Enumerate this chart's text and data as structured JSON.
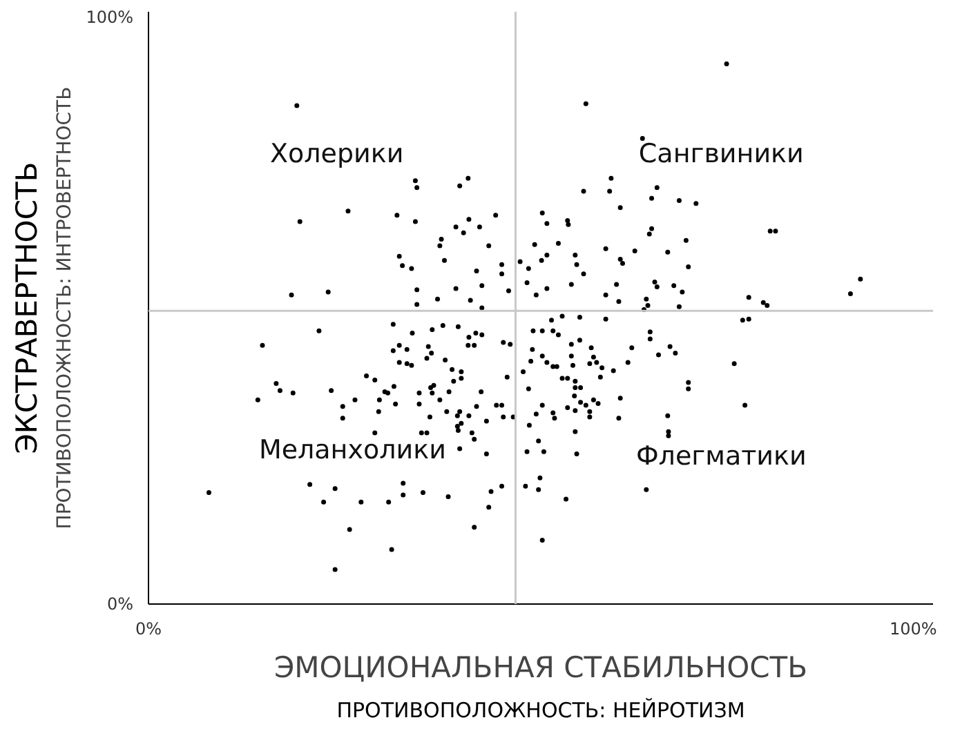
{
  "chart_data": {
    "type": "scatter",
    "xlabel": "ЭМОЦИОНАЛЬНАЯ СТАБИЛЬНОСТЬ",
    "ylabel": "ЭКСТРАВЕРТНОСТЬ",
    "annotations": [
      "Холерики",
      "Сангвиники",
      "Меланхолики",
      "Флегматики",
      "ПРОТИВОПОЛОЖНОСТЬ: НЕЙРОТИЗМ",
      "ПРОТИВОПОЛОЖНОСТЬ: ИНТРОВЕРТНОСТЬ"
    ],
    "xlim": [
      0,
      102.6
    ],
    "ylim": [
      0,
      101
    ],
    "xticks": [
      {
        "value": 0,
        "label": "0%"
      },
      {
        "value": 100,
        "label": "100%"
      }
    ],
    "yticks": [
      {
        "value": 0,
        "label": "0%"
      },
      {
        "value": 100,
        "label": "100%"
      }
    ],
    "grid": false,
    "marker": "circle",
    "ref_lines": [
      {
        "axis": "x",
        "value": 48,
        "label": null,
        "color": "#c8c8c8"
      },
      {
        "axis": "y",
        "value": 50,
        "label": null,
        "color": "#c8c8c8"
      }
    ],
    "series": [
      {
        "color": "#000000",
        "x": [
          19.4,
          19.8,
          26.1,
          34.9,
          35.1,
          40.7,
          41.8,
          32.5,
          34.9,
          45.4,
          40.2,
          41.2,
          41.9,
          43.3,
          38.3,
          38.1,
          44.5,
          32.8,
          33.2,
          34.4,
          38.7,
          42.9,
          46.2,
          46.2,
          43.6,
          35.1,
          40.2,
          47.1,
          18.7,
          23.5,
          35.1,
          37.8,
          42.1,
          43.6,
          75.6,
          57.2,
          64.6,
          60.5,
          56.9,
          60.3,
          66.5,
          65.8,
          69.4,
          71.6,
          61.7,
          51.5,
          52.1,
          54.8,
          54.9,
          65.8,
          65.5,
          81.3,
          82.0,
          50.5,
          53.6,
          70.3,
          51.4,
          52.1,
          55.8,
          56.0,
          59.8,
          63.6,
          67.9,
          61.7,
          62.0,
          70.6,
          49.7,
          56.9,
          49.5,
          55.3,
          61.2,
          66.2,
          66.5,
          68.7,
          50.7,
          52.1,
          59.8,
          61.5,
          65.1,
          65.3,
          64.8,
          69.8,
          69.4,
          78.5,
          80.4,
          80.9,
          91.8,
          93.1,
          48.6,
          22.3,
          14.9,
          32.0,
          34.5,
          37.1,
          38.5,
          40.5,
          42.8,
          43.6,
          41.9,
          41.8,
          42.6,
          46.4,
          47.3,
          32.8,
          32.0,
          33.8,
          36.6,
          37.0,
          36.4,
          38.8,
          32.8,
          33.8,
          34.4,
          39.7,
          40.9,
          40.9,
          39.9,
          46.9,
          28.5,
          29.6,
          32.1,
          16.7,
          17.2,
          18.9,
          23.9,
          30.9,
          31.3,
          35.4,
          36.9,
          37.3,
          37.1,
          39.3,
          43.5,
          14.3,
          27.0,
          30.2,
          25.4,
          32.3,
          35.4,
          38.1,
          30.1,
          25.4,
          39.0,
          40.7,
          40.4,
          41.9,
          42.9,
          45.5,
          46.2,
          46.4,
          47.7,
          36.8,
          44.2,
          40.4,
          40.9,
          40.5,
          42.3,
          42.6,
          35.7,
          36.4,
          29.6,
          44.2,
          40.7,
          7.9,
          21.1,
          24.4,
          22.9,
          27.8,
          31.4,
          33.3,
          33.3,
          35.9,
          39.2,
          44.8,
          46.2,
          44.5,
          42.6,
          26.3,
          31.8,
          24.4,
          49.5,
          49.3,
          77.7,
          78.5,
          52.7,
          54.1,
          56.4,
          59.8,
          50.3,
          51.5,
          52.9,
          53.6,
          65.6,
          65.6,
          56.4,
          55.3,
          63.2,
          68.2,
          68.9,
          66.7,
          50.2,
          57.9,
          51.5,
          55.3,
          58.2,
          50.0,
          52.1,
          55.5,
          57.7,
          58.6,
          52.9,
          53.4,
          59.3,
          62.7,
          76.6,
          49.0,
          60.8,
          54.1,
          54.8,
          59.1,
          55.8,
          55.8,
          56.5,
          49.7,
          55.7,
          61.7,
          58.2,
          58.8,
          56.5,
          57.2,
          51.5,
          54.8,
          55.8,
          57.7,
          57.7,
          52.9,
          53.1,
          50.7,
          61.5,
          70.6,
          70.6,
          78.0,
          67.9,
          68.0,
          68.0,
          49.8,
          55.8,
          51.0,
          51.7,
          56.0,
          51.2,
          51.0,
          54.6,
          65.1,
          51.5
        ],
        "values": [
          85.0,
          65.2,
          67.0,
          72.2,
          71.0,
          71.3,
          72.6,
          66.3,
          65.2,
          66.3,
          64.3,
          63.3,
          65.6,
          64.3,
          62.2,
          61.1,
          61.1,
          59.3,
          57.7,
          57.2,
          58.6,
          56.8,
          57.9,
          56.3,
          54.3,
          53.6,
          53.8,
          53.4,
          52.7,
          53.2,
          51.1,
          52.0,
          51.8,
          50.5,
          92.1,
          85.3,
          79.4,
          72.6,
          70.4,
          70.4,
          71.0,
          69.2,
          68.8,
          68.3,
          67.6,
          66.7,
          64.9,
          65.4,
          64.7,
          64.0,
          63.1,
          63.6,
          63.6,
          61.3,
          61.5,
          62.0,
          58.6,
          59.5,
          59.5,
          57.9,
          60.6,
          60.2,
          60.0,
          58.8,
          58.1,
          57.5,
          57.2,
          56.3,
          54.8,
          54.5,
          54.5,
          54.9,
          54.1,
          54.3,
          52.7,
          53.8,
          52.7,
          51.6,
          52.0,
          50.9,
          50.2,
          53.2,
          50.7,
          52.3,
          51.4,
          50.9,
          52.9,
          55.4,
          58.4,
          46.6,
          44.1,
          47.7,
          46.2,
          46.8,
          47.5,
          47.3,
          46.2,
          45.9,
          45.5,
          44.1,
          44.1,
          44.6,
          44.3,
          44.1,
          43.2,
          43.4,
          43.9,
          42.8,
          41.9,
          41.6,
          41.2,
          41.0,
          40.7,
          40.0,
          39.6,
          38.5,
          38.0,
          38.7,
          38.9,
          38.2,
          37.1,
          37.6,
          36.4,
          36.0,
          36.4,
          36.2,
          36.0,
          36.0,
          36.9,
          37.3,
          36.0,
          36.2,
          36.2,
          34.8,
          34.8,
          34.8,
          33.7,
          34.1,
          34.1,
          34.8,
          32.8,
          31.7,
          32.8,
          32.8,
          32.1,
          32.1,
          33.7,
          33.9,
          33.9,
          31.9,
          31.9,
          31.9,
          31.2,
          30.3,
          30.8,
          29.6,
          29.2,
          28.1,
          29.2,
          29.2,
          29.2,
          25.6,
          26.5,
          19.0,
          20.4,
          19.7,
          17.4,
          17.4,
          17.4,
          20.6,
          18.6,
          19.0,
          18.3,
          19.2,
          20.1,
          16.5,
          13.1,
          12.7,
          9.3,
          5.9,
          26.0,
          20.1,
          48.4,
          48.6,
          48.4,
          49.1,
          48.9,
          48.6,
          46.6,
          46.6,
          46.6,
          45.9,
          46.4,
          45.2,
          45.0,
          44.3,
          43.7,
          43.9,
          42.8,
          42.5,
          43.4,
          43.7,
          42.3,
          42.3,
          42.1,
          41.4,
          41.2,
          40.7,
          41.0,
          41.2,
          40.5,
          40.5,
          40.3,
          41.2,
          41.0,
          39.6,
          39.8,
          38.5,
          38.5,
          38.7,
          38.0,
          36.9,
          36.9,
          36.7,
          35.5,
          35.1,
          34.8,
          34.2,
          34.4,
          33.9,
          33.9,
          33.5,
          33.0,
          32.8,
          31.9,
          32.6,
          31.7,
          32.4,
          31.7,
          37.8,
          36.7,
          33.9,
          32.1,
          29.4,
          28.7,
          30.5,
          29.4,
          27.8,
          26.0,
          25.6,
          21.5,
          19.5,
          17.9,
          19.5,
          10.9
        ]
      }
    ]
  }
}
